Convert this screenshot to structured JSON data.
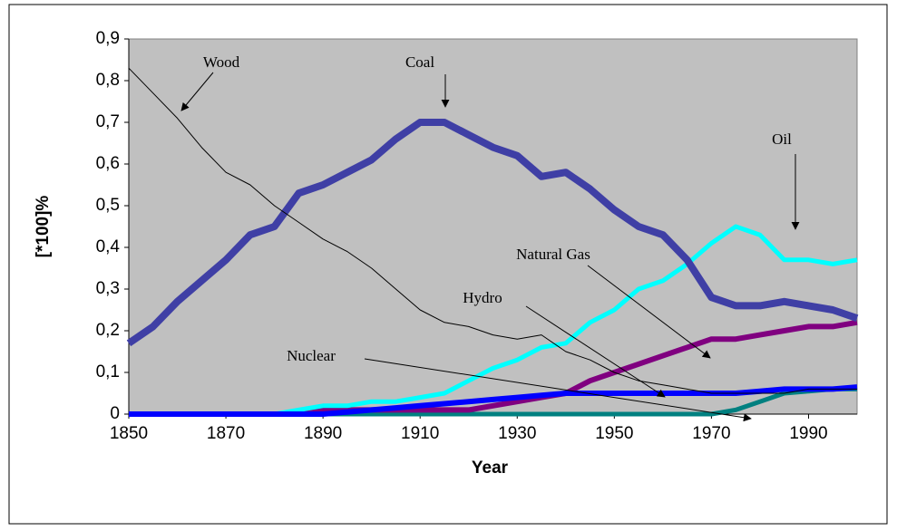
{
  "chart_data": {
    "type": "line",
    "xlabel": "Year",
    "ylabel": "[*100]%",
    "x": [
      1850,
      1855,
      1860,
      1865,
      1870,
      1875,
      1880,
      1885,
      1890,
      1895,
      1900,
      1905,
      1910,
      1915,
      1920,
      1925,
      1930,
      1935,
      1940,
      1945,
      1950,
      1955,
      1960,
      1965,
      1970,
      1975,
      1980,
      1985,
      1990,
      1995,
      2000
    ],
    "series": [
      {
        "name": "Wood",
        "color": "#000000",
        "values": [
          0.83,
          0.77,
          0.71,
          0.64,
          0.58,
          0.55,
          0.5,
          0.46,
          0.42,
          0.39,
          0.35,
          0.3,
          0.25,
          0.22,
          0.21,
          0.19,
          0.18,
          0.19,
          0.15,
          0.13,
          0.1,
          0.08,
          0.07,
          0.06,
          0.05,
          0.05,
          0.05,
          0.05,
          0.06,
          0.06,
          0.06
        ]
      },
      {
        "name": "Coal",
        "color": "#3f3fa5",
        "values": [
          0.17,
          0.21,
          0.27,
          0.32,
          0.37,
          0.43,
          0.45,
          0.53,
          0.55,
          0.58,
          0.61,
          0.66,
          0.7,
          0.7,
          0.67,
          0.64,
          0.62,
          0.57,
          0.58,
          0.54,
          0.49,
          0.45,
          0.43,
          0.37,
          0.28,
          0.26,
          0.26,
          0.27,
          0.26,
          0.25,
          0.23
        ]
      },
      {
        "name": "Oil",
        "color": "#00ffff",
        "values": [
          0,
          0,
          0,
          0,
          0,
          0,
          0,
          0.01,
          0.02,
          0.02,
          0.03,
          0.03,
          0.04,
          0.05,
          0.08,
          0.11,
          0.13,
          0.16,
          0.17,
          0.22,
          0.25,
          0.3,
          0.32,
          0.36,
          0.41,
          0.45,
          0.43,
          0.37,
          0.37,
          0.36,
          0.37
        ]
      },
      {
        "name": "Natural Gas",
        "color": "#800080",
        "values": [
          0,
          0,
          0,
          0,
          0,
          0,
          0,
          0,
          0.01,
          0.01,
          0.01,
          0.01,
          0.01,
          0.01,
          0.01,
          0.02,
          0.03,
          0.04,
          0.05,
          0.08,
          0.1,
          0.12,
          0.14,
          0.16,
          0.18,
          0.18,
          0.19,
          0.2,
          0.21,
          0.21,
          0.22
        ]
      },
      {
        "name": "Hydro",
        "color": "#0000ff",
        "values": [
          0,
          0,
          0,
          0,
          0,
          0,
          0,
          0,
          0,
          0.005,
          0.01,
          0.015,
          0.02,
          0.025,
          0.03,
          0.035,
          0.04,
          0.045,
          0.05,
          0.05,
          0.05,
          0.05,
          0.05,
          0.05,
          0.05,
          0.05,
          0.055,
          0.06,
          0.06,
          0.06,
          0.065
        ]
      },
      {
        "name": "Nuclear",
        "color": "#008080",
        "values": [
          0,
          0,
          0,
          0,
          0,
          0,
          0,
          0,
          0,
          0,
          0,
          0,
          0,
          0,
          0,
          0,
          0,
          0,
          0,
          0,
          0,
          0,
          0,
          0,
          0,
          0.01,
          0.03,
          0.05,
          0.055,
          0.06,
          0.06
        ]
      }
    ],
    "xlim": [
      1850,
      2000
    ],
    "xticks": [
      1850,
      1870,
      1890,
      1910,
      1930,
      1950,
      1970,
      1990
    ],
    "ylim": [
      0,
      0.9
    ],
    "yticks": [
      0,
      {
        "value": 0.1,
        "label": "0,1"
      },
      {
        "value": 0.2,
        "label": "0,2"
      },
      {
        "value": 0.3,
        "label": "0,3"
      },
      {
        "value": 0.4,
        "label": "0,4"
      },
      {
        "value": 0.5,
        "label": "0,5"
      },
      {
        "value": 0.6,
        "label": "0,6"
      },
      {
        "value": 0.7,
        "label": "0,7"
      },
      {
        "value": 0.8,
        "label": "0,8"
      },
      {
        "value": 0.9,
        "label": "0,9"
      }
    ]
  }
}
